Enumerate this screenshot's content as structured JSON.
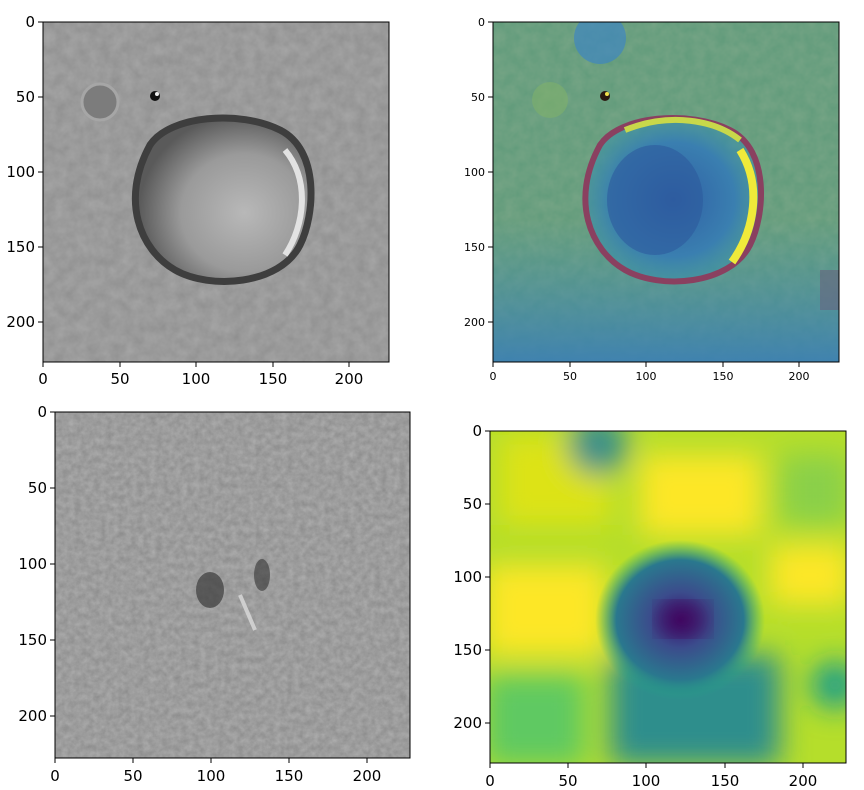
{
  "panels": [
    {
      "id": "crater-grayscale",
      "image": "grayscale martian surface with large impact crater",
      "x_ticks": [
        "0",
        "50",
        "100",
        "150",
        "200"
      ],
      "y_ticks": [
        "0",
        "50",
        "100",
        "150",
        "200"
      ],
      "colormap": "gray"
    },
    {
      "id": "crater-saliency-overlay",
      "image": "crater image overlaid with viridis saliency heatmap",
      "x_ticks": [
        "0",
        "50",
        "100",
        "150",
        "200"
      ],
      "y_ticks": [
        "0",
        "50",
        "100",
        "150",
        "200"
      ],
      "colormap": "viridis"
    },
    {
      "id": "terrain-grayscale",
      "image": "grayscale rough martian terrain",
      "x_ticks": [
        "0",
        "50",
        "100",
        "150",
        "200"
      ],
      "y_ticks": [
        "0",
        "50",
        "100",
        "150",
        "200"
      ],
      "colormap": "gray"
    },
    {
      "id": "terrain-saliency-map",
      "image": "viridis saliency heatmap with dark blob near center",
      "x_ticks": [
        "0",
        "50",
        "100",
        "150",
        "200"
      ],
      "y_ticks": [
        "0",
        "50",
        "100",
        "150",
        "200"
      ],
      "colormap": "viridis"
    }
  ]
}
